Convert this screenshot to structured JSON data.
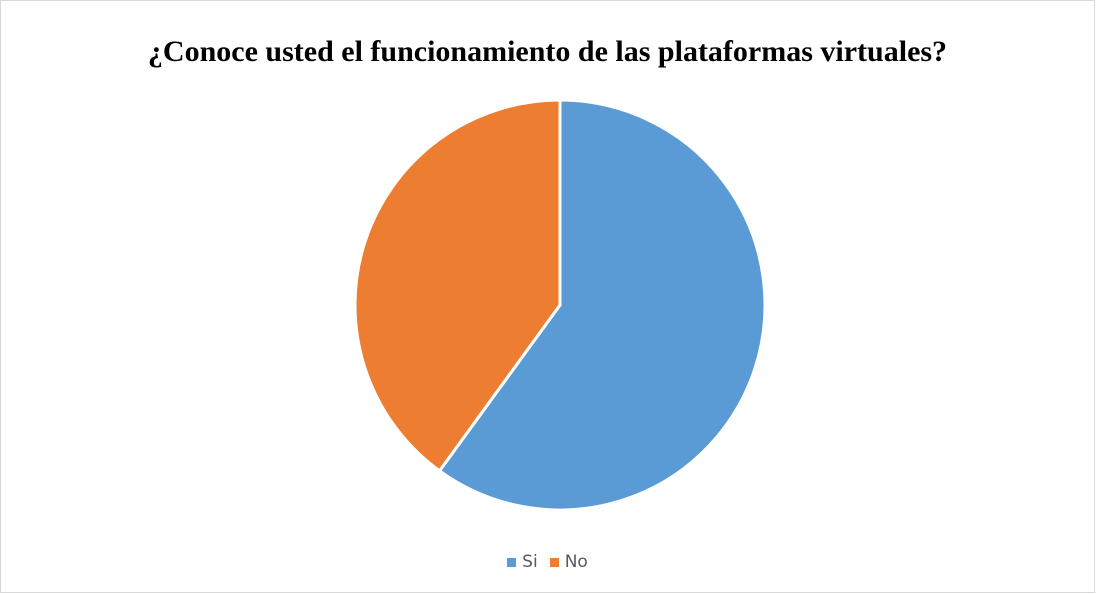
{
  "chart_data": {
    "type": "pie",
    "title": "¿Conoce usted el funcionamiento de las plataformas virtuales?",
    "categories": [
      "Si",
      "No"
    ],
    "values": [
      60,
      40
    ],
    "colors": [
      "#5b9bd5",
      "#ed7d31"
    ],
    "start_angle_deg": 0,
    "direction": "clockwise",
    "legend_position": "bottom",
    "data_labels": false
  }
}
